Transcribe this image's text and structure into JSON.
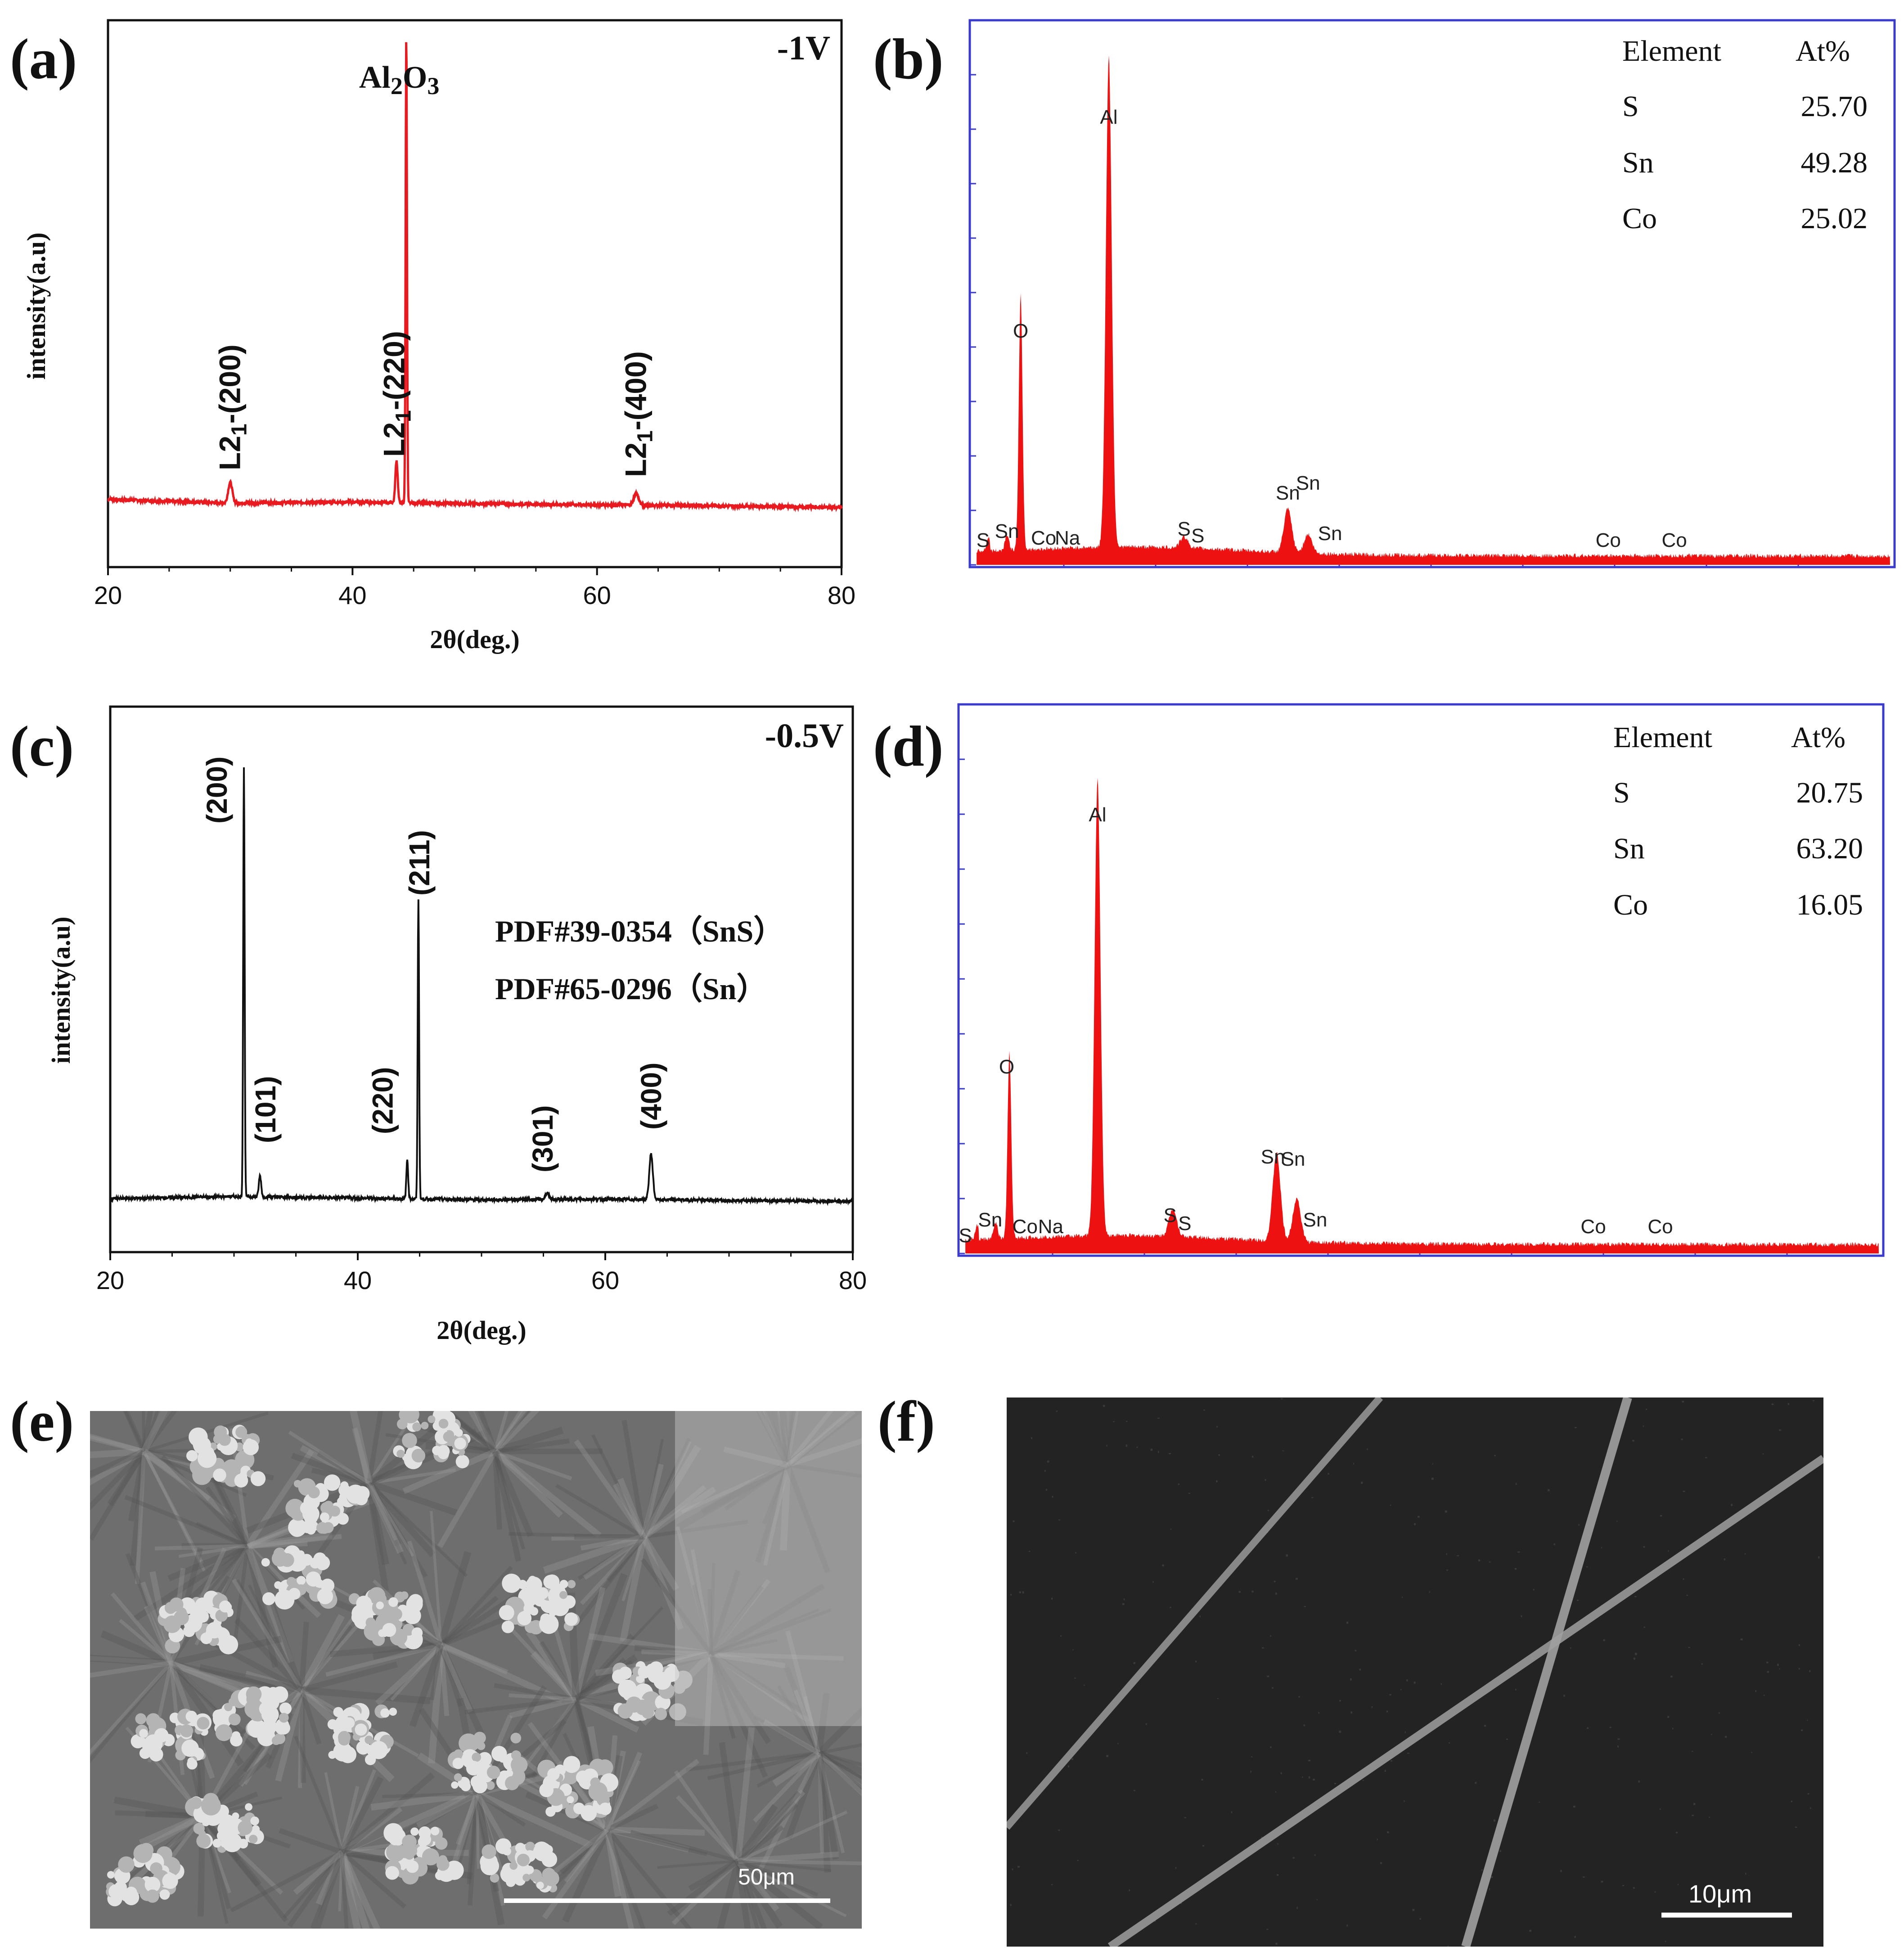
{
  "panel_labels": {
    "a": "(a)",
    "b": "(b)",
    "c": "(c)",
    "d": "(d)",
    "e": "(e)",
    "f": "(f)"
  },
  "colors": {
    "xrd_a": "#e8191f",
    "xrd_c": "#111111",
    "eds": "#ee1111",
    "eds_frame": "#3a3acc",
    "axis": "#111111"
  },
  "chart_data": [
    {
      "id": "a",
      "type": "line",
      "title": "-1V",
      "xlabel": "2θ(deg.)",
      "ylabel": "intensity(a.u)",
      "xlim": [
        20,
        80
      ],
      "ylim": [
        0,
        100
      ],
      "x_ticks": [
        20,
        40,
        60,
        80
      ],
      "series": [
        {
          "name": "-1V",
          "baseline": [
            [
              20,
              12.4
            ],
            [
              30,
              11.7
            ],
            [
              40,
              11.9
            ],
            [
              50,
              11.6
            ],
            [
              60,
              11.4
            ],
            [
              70,
              11.2
            ],
            [
              80,
              10.9
            ]
          ],
          "peaks": [
            {
              "x": 30.0,
              "y": 15.5,
              "w": 0.35
            },
            {
              "x": 43.6,
              "y": 19.5,
              "w": 0.2
            },
            {
              "x": 44.4,
              "y": 97.5,
              "w": 0.12
            },
            {
              "x": 63.2,
              "y": 13.5,
              "w": 0.4
            }
          ]
        }
      ],
      "annotations": [
        {
          "text": "Al2O3",
          "x": 44.4
        },
        {
          "text": "L21-(200)",
          "x": 30.0
        },
        {
          "text": "L21-(220)",
          "x": 43.5
        },
        {
          "text": "L21-(400)",
          "x": 63.2
        }
      ]
    },
    {
      "id": "b",
      "type": "area",
      "legend_title_element": "Element",
      "legend_title_at": "At%",
      "elements": [
        {
          "name": "S",
          "at": "25.70"
        },
        {
          "name": "Sn",
          "at": "49.28"
        },
        {
          "name": "Co",
          "at": "25.02"
        }
      ],
      "xlim": [
        0,
        10
      ],
      "ylim": [
        0,
        100
      ],
      "peaks": [
        {
          "label": "O",
          "x": 0.53,
          "y": 47
        },
        {
          "label": "Al",
          "x": 1.49,
          "y": 90
        },
        {
          "label": "S",
          "x": 2.31,
          "y": 2
        },
        {
          "label": "Sn",
          "x": 3.44,
          "y": 8
        },
        {
          "label": "Sn",
          "x": 3.66,
          "y": 3.5
        }
      ],
      "peak_labels": [
        {
          "text": "S",
          "x": 0.12
        },
        {
          "text": "Sn",
          "x": 0.38
        },
        {
          "text": "Co",
          "x": 0.78
        },
        {
          "text": "Na",
          "x": 1.04
        },
        {
          "text": "O",
          "x": 0.53
        },
        {
          "text": "Al",
          "x": 1.49
        },
        {
          "text": "S",
          "x": 2.31
        },
        {
          "text": "S",
          "x": 2.46
        },
        {
          "text": "Sn",
          "x": 3.44
        },
        {
          "text": "Sn",
          "x": 3.66
        },
        {
          "text": "Sn",
          "x": 3.9
        },
        {
          "text": "Co",
          "x": 6.93
        },
        {
          "text": "Co",
          "x": 7.65
        }
      ]
    },
    {
      "id": "c",
      "type": "line",
      "title": "-0.5V",
      "xlabel": "2θ(deg.)",
      "ylabel": "intensity(a.u)",
      "xlim": [
        20,
        80
      ],
      "ylim": [
        0,
        100
      ],
      "x_ticks": [
        20,
        40,
        60,
        80
      ],
      "series": [
        {
          "name": "-0.5V",
          "baseline": [
            [
              20,
              9.8
            ],
            [
              30,
              10.2
            ],
            [
              40,
              9.9
            ],
            [
              50,
              9.6
            ],
            [
              60,
              9.7
            ],
            [
              70,
              9.5
            ],
            [
              80,
              9.3
            ]
          ],
          "peaks": [
            {
              "x": 30.8,
              "y": 89,
              "w": 0.12
            },
            {
              "x": 32.1,
              "y": 14,
              "w": 0.2
            },
            {
              "x": 44.0,
              "y": 17,
              "w": 0.15
            },
            {
              "x": 44.9,
              "y": 64.5,
              "w": 0.12
            },
            {
              "x": 55.3,
              "y": 10.8,
              "w": 0.3
            },
            {
              "x": 63.7,
              "y": 18,
              "w": 0.3
            }
          ]
        }
      ],
      "annotations": [
        {
          "text": "(200)",
          "x": 30.8
        },
        {
          "text": "(101)",
          "x": 32.1
        },
        {
          "text": "(220)",
          "x": 43.9
        },
        {
          "text": "(211)",
          "x": 44.9
        },
        {
          "text": "(301)",
          "x": 55.3
        },
        {
          "text": "(400)",
          "x": 63.7
        }
      ],
      "legend": [
        "PDF#39-0354（SnS）",
        "PDF#65-0296（Sn）"
      ]
    },
    {
      "id": "d",
      "type": "area",
      "legend_title_element": "Element",
      "legend_title_at": "At%",
      "elements": [
        {
          "name": "S",
          "at": "20.75"
        },
        {
          "name": "Sn",
          "at": "63.20"
        },
        {
          "name": "Co",
          "at": "16.05"
        }
      ],
      "xlim": [
        0,
        10
      ],
      "ylim": [
        0,
        100
      ],
      "peaks": [
        {
          "label": "O",
          "x": 0.53,
          "y": 34
        },
        {
          "label": "Al",
          "x": 1.49,
          "y": 83
        },
        {
          "label": "S",
          "x": 2.31,
          "y": 5
        },
        {
          "label": "Sn",
          "x": 3.44,
          "y": 16
        },
        {
          "label": "Sn",
          "x": 3.66,
          "y": 8
        }
      ],
      "peak_labels": [
        {
          "text": "S",
          "x": 0.05
        },
        {
          "text": "Sn",
          "x": 0.32
        },
        {
          "text": "Co",
          "x": 0.7
        },
        {
          "text": "Na",
          "x": 0.98
        },
        {
          "text": "O",
          "x": 0.5
        },
        {
          "text": "Al",
          "x": 1.49
        },
        {
          "text": "S",
          "x": 2.28
        },
        {
          "text": "S",
          "x": 2.44
        },
        {
          "text": "Sn",
          "x": 3.4
        },
        {
          "text": "Sn",
          "x": 3.62
        },
        {
          "text": "Sn",
          "x": 3.86
        },
        {
          "text": "Co",
          "x": 6.89
        },
        {
          "text": "Co",
          "x": 7.62
        }
      ]
    }
  ],
  "sem_e": {
    "scale_bar": "50μm"
  },
  "sem_f": {
    "scale_bar": "10μm"
  }
}
